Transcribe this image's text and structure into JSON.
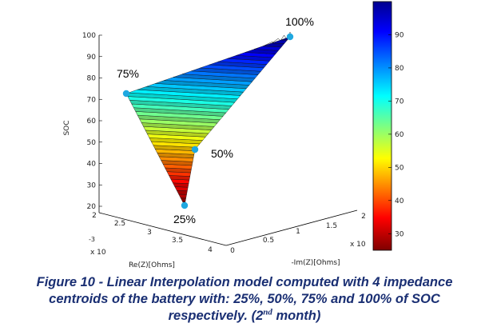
{
  "colors": {
    "caption": "#1a2f73",
    "marker": "#1fa8e0",
    "colormap": [
      "#7f0000",
      "#ff0000",
      "#ffff00",
      "#00ffff",
      "#0000ff",
      "#00008f"
    ]
  },
  "chart_data": {
    "type": "3d-surface",
    "title": "",
    "xlabel": "Re(Z)[Ohms]",
    "ylabel": "-Im(Z)[Ohms]",
    "zlabel": "SOC",
    "x_ticks": [
      "2",
      "2.5",
      "3",
      "3.5",
      "4"
    ],
    "x_exponent": "x 10",
    "x_exponent_power": "-3",
    "y_ticks": [
      "0",
      "0.5",
      "1",
      "1.5",
      "2"
    ],
    "y_exponent": "x 10",
    "z_ticks": [
      "20",
      "30",
      "40",
      "50",
      "60",
      "70",
      "80",
      "90",
      "100"
    ],
    "zlim": [
      20,
      100
    ],
    "colorbar_ticks": [
      "30",
      "40",
      "50",
      "60",
      "70",
      "80",
      "90"
    ],
    "colorbar_range": [
      25,
      100
    ],
    "points": [
      {
        "label": "25%",
        "soc": 25
      },
      {
        "label": "50%",
        "soc": 50
      },
      {
        "label": "75%",
        "soc": 75
      },
      {
        "label": "100%",
        "soc": 100
      }
    ]
  },
  "caption": {
    "line1": "Figure 10 - Linear Interpolation model computed with 4 impedance",
    "line2": "centroids of the battery with: 25%, 50%, 75% and 100% of SOC",
    "line3_a": "respectively. (2",
    "line3_sup": "nd",
    "line3_b": " month)"
  }
}
